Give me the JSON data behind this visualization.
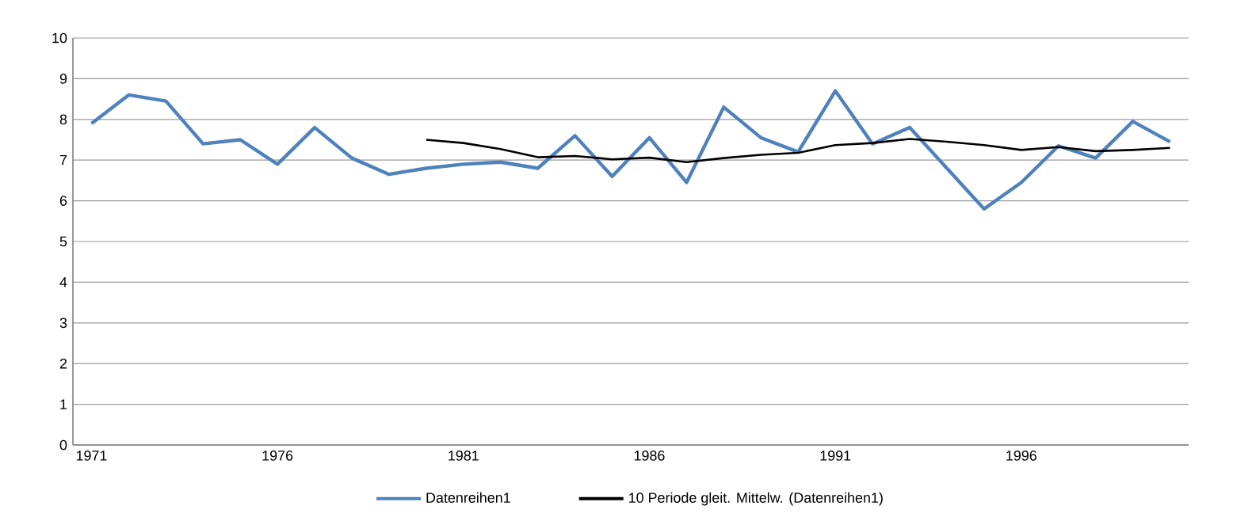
{
  "chart_data": {
    "type": "line",
    "categories": [
      "1971",
      null,
      null,
      null,
      null,
      "1976",
      null,
      null,
      null,
      null,
      "1981",
      null,
      null,
      null,
      null,
      "1986",
      null,
      null,
      null,
      null,
      "1991",
      null,
      null,
      null,
      null,
      "1996",
      null,
      null,
      null,
      null
    ],
    "series": [
      {
        "name": "Datenreihen1",
        "color": "#4f81bd",
        "values": [
          7.9,
          8.6,
          8.45,
          7.4,
          7.5,
          6.9,
          7.8,
          7.05,
          6.65,
          6.8,
          6.9,
          6.95,
          6.8,
          7.6,
          6.6,
          7.55,
          6.45,
          8.3,
          7.55,
          7.2,
          8.7,
          7.4,
          7.8,
          6.8,
          5.8,
          6.45,
          7.35,
          7.05,
          7.95,
          7.45
        ]
      },
      {
        "name": "10 Periode gleit. Mittelw. (Datenreihen1)",
        "color": "#000000",
        "values": [
          null,
          null,
          null,
          null,
          null,
          null,
          null,
          null,
          null,
          7.5,
          7.42,
          7.27,
          7.07,
          7.1,
          7.02,
          7.06,
          6.95,
          7.05,
          7.13,
          7.18,
          7.37,
          7.42,
          7.52,
          7.45,
          7.37,
          7.25,
          7.32,
          7.22,
          7.25,
          7.3
        ]
      }
    ],
    "ylim": [
      0,
      10
    ],
    "yticks": [
      0,
      1,
      2,
      3,
      4,
      5,
      6,
      7,
      8,
      9,
      10
    ],
    "grid": "y",
    "legend": "bottom",
    "marker": "none",
    "line_style": "solid"
  }
}
